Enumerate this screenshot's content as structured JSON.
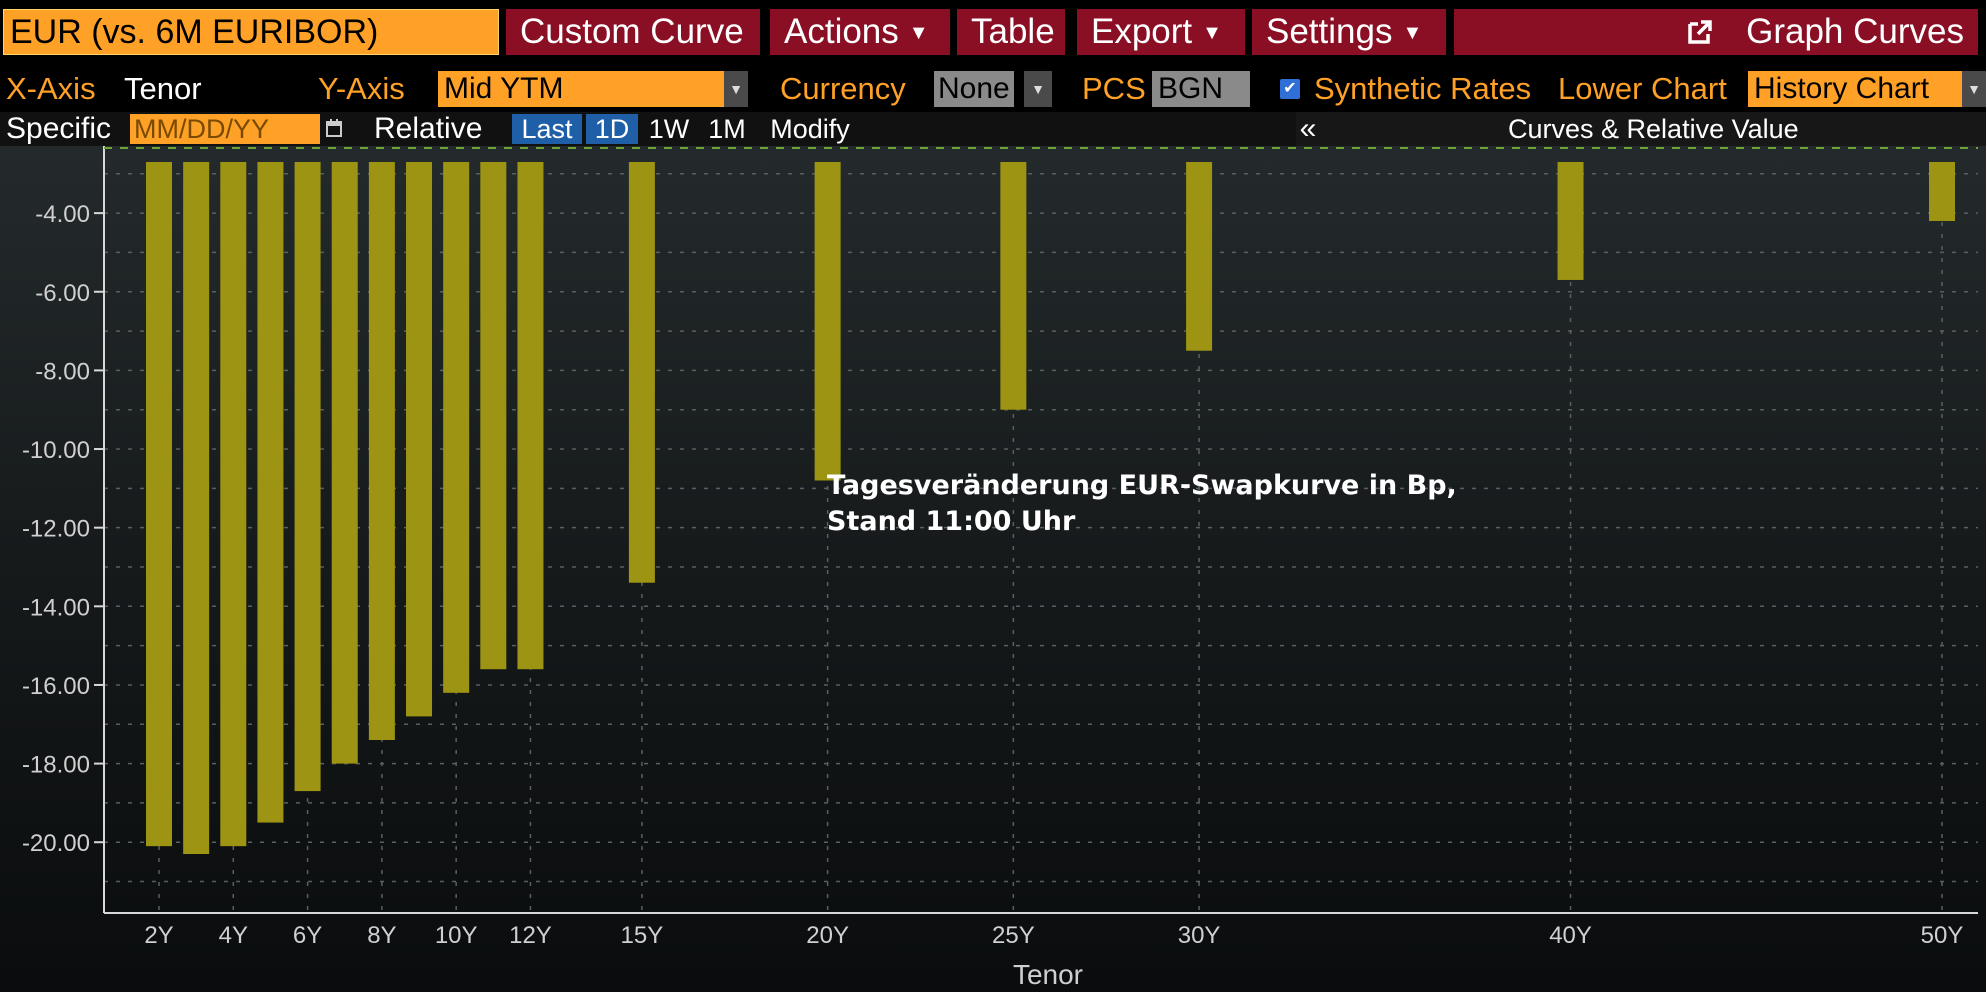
{
  "toolbar": {
    "curve_field": "EUR (vs. 6M EURIBOR)",
    "custom_curve": "Custom Curve",
    "actions": "Actions",
    "table": "Table",
    "export": "Export",
    "settings": "Settings",
    "graph_curves": "Graph Curves"
  },
  "axes_bar": {
    "x_axis_label": "X-Axis",
    "x_axis_value": "Tenor",
    "y_axis_label": "Y-Axis",
    "y_axis_value": "Mid YTM",
    "currency_label": "Currency",
    "currency_value": "None",
    "pcs_label": "PCS",
    "pcs_value": "BGN",
    "synthetic_rates": "Synthetic Rates",
    "lower_chart_label": "Lower Chart",
    "lower_chart_value": "History Chart"
  },
  "date_bar": {
    "specific_label": "Specific",
    "date_placeholder": "MM/DD/YY",
    "relative_label": "Relative",
    "tabs": [
      "Last",
      "1D",
      "1W",
      "1M",
      "Modify"
    ],
    "collapse": "«",
    "panel_title": "Curves & Relative Value"
  },
  "colors": {
    "bar": "#9c9412",
    "accent_orange": "#ffa126",
    "menu_red": "#8a0f24",
    "selected_blue": "#1f5fa8"
  },
  "chart_data": {
    "type": "bar",
    "annotation": [
      "Tagesveränderung EUR-Swapkurve in Bp,",
      "Stand 11:00 Uhr"
    ],
    "xlabel": "Tenor",
    "ylabel": "",
    "x_tenor_years": [
      2,
      3,
      4,
      5,
      6,
      7,
      8,
      9,
      10,
      11,
      12,
      15,
      20,
      25,
      30,
      40,
      50
    ],
    "values": [
      -20.1,
      -20.3,
      -20.1,
      -19.5,
      -18.7,
      -18.0,
      -17.4,
      -16.8,
      -16.2,
      -15.6,
      -15.6,
      -13.4,
      -10.8,
      -9.0,
      -7.5,
      -5.7,
      -4.2
    ],
    "x_tick_labels": [
      "2Y",
      "4Y",
      "6Y",
      "8Y",
      "10Y",
      "12Y",
      "15Y",
      "20Y",
      "25Y",
      "30Y",
      "40Y",
      "50Y"
    ],
    "x_tick_years": [
      2,
      4,
      6,
      8,
      10,
      12,
      15,
      20,
      25,
      30,
      40,
      50
    ],
    "y_tick_labels": [
      "-4.00",
      "-6.00",
      "-8.00",
      "-10.00",
      "-12.00",
      "-14.00",
      "-16.00",
      "-18.00",
      "-20.00"
    ],
    "y_tick_values": [
      -4,
      -6,
      -8,
      -10,
      -12,
      -14,
      -16,
      -18,
      -20
    ],
    "ylim": [
      -21.8,
      -2.7
    ],
    "grid": true
  }
}
